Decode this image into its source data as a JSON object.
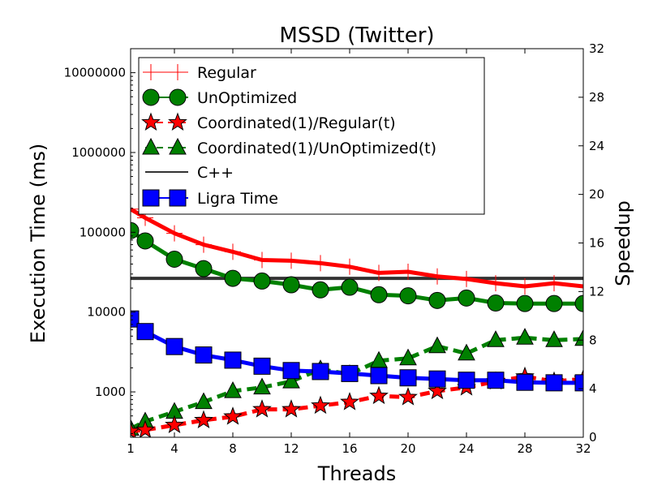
{
  "chart_data": {
    "type": "line",
    "title": "MSSD (Twitter)",
    "xlabel": "Threads",
    "ylabel": "Execution Time (ms)",
    "y2label": "Speedup",
    "xlim": [
      1,
      32
    ],
    "ylim": [
      270,
      20000000
    ],
    "yscale": "log",
    "y2lim": [
      0,
      32
    ],
    "x_ticks": [
      "1",
      "4",
      "8",
      "12",
      "16",
      "20",
      "24",
      "28",
      "32"
    ],
    "x_tick_values": [
      1,
      4,
      8,
      12,
      16,
      20,
      24,
      28,
      32
    ],
    "y_ticks": [
      "1000",
      "10000",
      "100000",
      "1000000",
      "10000000"
    ],
    "y_tick_values": [
      1000,
      10000,
      100000,
      1000000,
      10000000
    ],
    "y2_ticks": [
      "0",
      "4",
      "8",
      "12",
      "16",
      "20",
      "24",
      "28",
      "32"
    ],
    "y2_tick_values": [
      0,
      4,
      8,
      12,
      16,
      20,
      24,
      28,
      32
    ],
    "legend_position": "top-left",
    "grid": false,
    "series": [
      {
        "name": "Regular",
        "axis": "left",
        "color": "#ff0000",
        "marker": "plus",
        "dashed": false,
        "x": [
          1,
          2,
          4,
          6,
          8,
          10,
          12,
          14,
          16,
          18,
          20,
          22,
          24,
          26,
          28,
          30,
          32
        ],
        "y": [
          195000,
          152000,
          97000,
          70000,
          57000,
          45000,
          44000,
          41000,
          37000,
          31000,
          32000,
          28000,
          26000,
          23000,
          21000,
          23000,
          21000
        ]
      },
      {
        "name": "UnOptimized",
        "axis": "left",
        "color": "#008000",
        "marker": "circle",
        "dashed": false,
        "x": [
          1,
          2,
          4,
          6,
          8,
          10,
          12,
          14,
          16,
          18,
          20,
          22,
          24,
          26,
          28,
          30,
          32
        ],
        "y": [
          105000,
          78000,
          46000,
          35000,
          26500,
          24500,
          22000,
          19000,
          20500,
          16500,
          16000,
          14000,
          15000,
          13000,
          12800,
          12800,
          12800
        ]
      },
      {
        "name": "Coordinated(1)/Regular(t)",
        "axis": "right",
        "color": "#ff0000",
        "marker": "star",
        "dashed": true,
        "x": [
          1,
          2,
          4,
          6,
          8,
          10,
          12,
          14,
          16,
          18,
          20,
          22,
          24,
          26,
          28,
          30,
          32
        ],
        "y": [
          0.5,
          0.6,
          1.0,
          1.4,
          1.7,
          2.3,
          2.3,
          2.6,
          2.9,
          3.4,
          3.3,
          3.8,
          4.1,
          4.6,
          5.0,
          4.6,
          4.8
        ]
      },
      {
        "name": "Coordinated(1)/UnOptimized(t)",
        "axis": "right",
        "color": "#008000",
        "marker": "triangle",
        "dashed": true,
        "x": [
          1,
          2,
          4,
          6,
          8,
          10,
          12,
          14,
          16,
          18,
          20,
          22,
          24,
          26,
          28,
          30,
          32
        ],
        "y": [
          0.7,
          1.3,
          2.1,
          2.9,
          3.8,
          4.1,
          4.6,
          5.6,
          5.2,
          6.3,
          6.5,
          7.5,
          6.9,
          8.0,
          8.2,
          8.0,
          8.1
        ]
      },
      {
        "name": "C++",
        "axis": "left",
        "color": "#333333",
        "marker": "none",
        "dashed": false,
        "x": [
          1,
          32
        ],
        "y": [
          26500,
          26500
        ]
      },
      {
        "name": "Ligra Time",
        "axis": "left",
        "color": "#0000ff",
        "marker": "square",
        "dashed": false,
        "x": [
          1,
          2,
          4,
          6,
          8,
          10,
          12,
          14,
          16,
          18,
          20,
          22,
          24,
          26,
          28,
          30,
          32
        ],
        "y": [
          8200,
          5700,
          3700,
          2900,
          2500,
          2100,
          1850,
          1800,
          1700,
          1600,
          1500,
          1450,
          1400,
          1400,
          1320,
          1300,
          1300
        ]
      }
    ]
  }
}
